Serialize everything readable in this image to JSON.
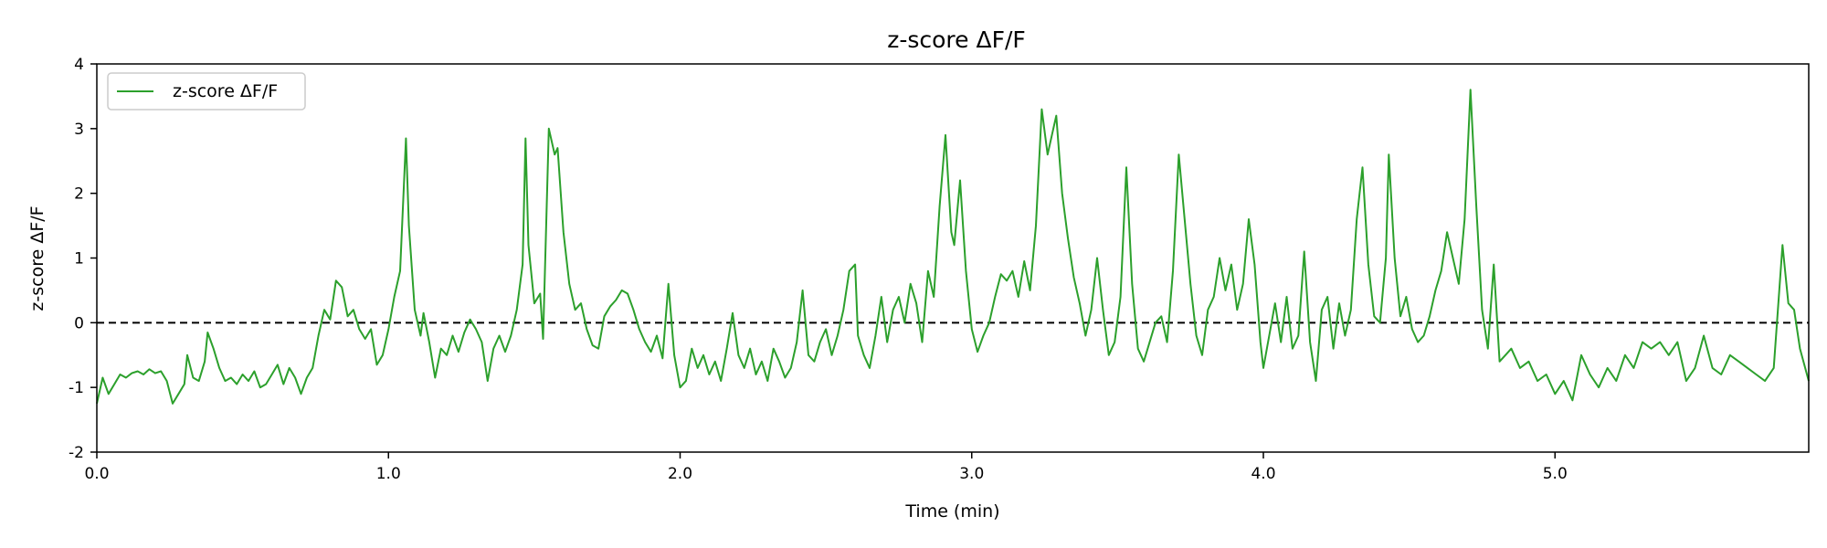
{
  "chart_data": {
    "type": "line",
    "title": "z-score ΔF/F",
    "xlabel": "Time (min)",
    "ylabel": "z-score ΔF/F",
    "xlim": [
      0,
      5.87
    ],
    "ylim": [
      -2,
      4
    ],
    "xticks": [
      0,
      1,
      2,
      3,
      4,
      5
    ],
    "xtick_labels": [
      "0.0",
      "1.0",
      "2.0",
      "3.0",
      "4.0",
      "5.0"
    ],
    "yticks": [
      -2,
      -1,
      0,
      1,
      2,
      3,
      4
    ],
    "ytick_labels": [
      "-2",
      "-1",
      "0",
      "1",
      "2",
      "3",
      "4"
    ],
    "grid": false,
    "legend": {
      "position": "top-left",
      "entries": [
        "z-score ΔF/F"
      ]
    },
    "reference_line": {
      "y": 0,
      "style": "dashed",
      "color": "#000000"
    },
    "series": [
      {
        "name": "z-score ΔF/F",
        "color": "#2ca02c",
        "points": [
          [
            0.0,
            -1.25
          ],
          [
            0.02,
            -0.85
          ],
          [
            0.04,
            -1.1
          ],
          [
            0.06,
            -0.95
          ],
          [
            0.08,
            -0.8
          ],
          [
            0.1,
            -0.85
          ],
          [
            0.12,
            -0.78
          ],
          [
            0.14,
            -0.75
          ],
          [
            0.16,
            -0.8
          ],
          [
            0.18,
            -0.72
          ],
          [
            0.2,
            -0.78
          ],
          [
            0.22,
            -0.75
          ],
          [
            0.24,
            -0.9
          ],
          [
            0.26,
            -1.25
          ],
          [
            0.28,
            -1.1
          ],
          [
            0.3,
            -0.95
          ],
          [
            0.31,
            -0.5
          ],
          [
            0.33,
            -0.85
          ],
          [
            0.35,
            -0.9
          ],
          [
            0.37,
            -0.6
          ],
          [
            0.38,
            -0.15
          ],
          [
            0.4,
            -0.4
          ],
          [
            0.42,
            -0.7
          ],
          [
            0.44,
            -0.9
          ],
          [
            0.46,
            -0.85
          ],
          [
            0.48,
            -0.95
          ],
          [
            0.5,
            -0.8
          ],
          [
            0.52,
            -0.9
          ],
          [
            0.54,
            -0.75
          ],
          [
            0.56,
            -1.0
          ],
          [
            0.58,
            -0.95
          ],
          [
            0.6,
            -0.8
          ],
          [
            0.62,
            -0.65
          ],
          [
            0.64,
            -0.95
          ],
          [
            0.66,
            -0.7
          ],
          [
            0.68,
            -0.85
          ],
          [
            0.7,
            -1.1
          ],
          [
            0.72,
            -0.85
          ],
          [
            0.74,
            -0.7
          ],
          [
            0.76,
            -0.2
          ],
          [
            0.78,
            0.2
          ],
          [
            0.8,
            0.05
          ],
          [
            0.82,
            0.65
          ],
          [
            0.84,
            0.55
          ],
          [
            0.86,
            0.1
          ],
          [
            0.88,
            0.2
          ],
          [
            0.9,
            -0.1
          ],
          [
            0.92,
            -0.25
          ],
          [
            0.94,
            -0.1
          ],
          [
            0.96,
            -0.65
          ],
          [
            0.98,
            -0.5
          ],
          [
            1.0,
            -0.1
          ],
          [
            1.02,
            0.4
          ],
          [
            1.04,
            0.8
          ],
          [
            1.06,
            2.85
          ],
          [
            1.07,
            1.5
          ],
          [
            1.09,
            0.2
          ],
          [
            1.11,
            -0.2
          ],
          [
            1.12,
            0.15
          ],
          [
            1.14,
            -0.3
          ],
          [
            1.16,
            -0.85
          ],
          [
            1.18,
            -0.4
          ],
          [
            1.2,
            -0.5
          ],
          [
            1.22,
            -0.2
          ],
          [
            1.24,
            -0.45
          ],
          [
            1.26,
            -0.15
          ],
          [
            1.28,
            0.05
          ],
          [
            1.3,
            -0.1
          ],
          [
            1.32,
            -0.3
          ],
          [
            1.34,
            -0.9
          ],
          [
            1.36,
            -0.4
          ],
          [
            1.38,
            -0.2
          ],
          [
            1.4,
            -0.45
          ],
          [
            1.42,
            -0.2
          ],
          [
            1.44,
            0.2
          ],
          [
            1.46,
            0.9
          ],
          [
            1.47,
            2.85
          ],
          [
            1.48,
            1.2
          ],
          [
            1.5,
            0.3
          ],
          [
            1.52,
            0.45
          ],
          [
            1.53,
            -0.25
          ],
          [
            1.55,
            3.0
          ],
          [
            1.57,
            2.6
          ],
          [
            1.58,
            2.7
          ],
          [
            1.6,
            1.4
          ],
          [
            1.62,
            0.6
          ],
          [
            1.64,
            0.2
          ],
          [
            1.66,
            0.3
          ],
          [
            1.68,
            -0.1
          ],
          [
            1.7,
            -0.35
          ],
          [
            1.72,
            -0.4
          ],
          [
            1.74,
            0.1
          ],
          [
            1.76,
            0.25
          ],
          [
            1.78,
            0.35
          ],
          [
            1.8,
            0.5
          ],
          [
            1.82,
            0.45
          ],
          [
            1.84,
            0.2
          ],
          [
            1.86,
            -0.1
          ],
          [
            1.88,
            -0.3
          ],
          [
            1.9,
            -0.45
          ],
          [
            1.92,
            -0.2
          ],
          [
            1.94,
            -0.55
          ],
          [
            1.96,
            0.6
          ],
          [
            1.98,
            -0.5
          ],
          [
            2.0,
            -1.0
          ],
          [
            2.02,
            -0.9
          ],
          [
            2.04,
            -0.4
          ],
          [
            2.06,
            -0.7
          ],
          [
            2.08,
            -0.5
          ],
          [
            2.1,
            -0.8
          ],
          [
            2.12,
            -0.6
          ],
          [
            2.14,
            -0.9
          ],
          [
            2.16,
            -0.4
          ],
          [
            2.18,
            0.15
          ],
          [
            2.2,
            -0.5
          ],
          [
            2.22,
            -0.7
          ],
          [
            2.24,
            -0.4
          ],
          [
            2.26,
            -0.8
          ],
          [
            2.28,
            -0.6
          ],
          [
            2.3,
            -0.9
          ],
          [
            2.32,
            -0.4
          ],
          [
            2.34,
            -0.6
          ],
          [
            2.36,
            -0.85
          ],
          [
            2.38,
            -0.7
          ],
          [
            2.4,
            -0.3
          ],
          [
            2.42,
            0.5
          ],
          [
            2.44,
            -0.5
          ],
          [
            2.46,
            -0.6
          ],
          [
            2.48,
            -0.3
          ],
          [
            2.5,
            -0.1
          ],
          [
            2.52,
            -0.5
          ],
          [
            2.54,
            -0.2
          ],
          [
            2.56,
            0.2
          ],
          [
            2.58,
            0.8
          ],
          [
            2.6,
            0.9
          ],
          [
            2.61,
            -0.2
          ],
          [
            2.63,
            -0.5
          ],
          [
            2.65,
            -0.7
          ],
          [
            2.67,
            -0.2
          ],
          [
            2.69,
            0.4
          ],
          [
            2.71,
            -0.3
          ],
          [
            2.73,
            0.2
          ],
          [
            2.75,
            0.4
          ],
          [
            2.77,
            0.0
          ],
          [
            2.79,
            0.6
          ],
          [
            2.81,
            0.3
          ],
          [
            2.83,
            -0.3
          ],
          [
            2.85,
            0.8
          ],
          [
            2.87,
            0.4
          ],
          [
            2.89,
            1.8
          ],
          [
            2.91,
            2.9
          ],
          [
            2.93,
            1.4
          ],
          [
            2.94,
            1.2
          ],
          [
            2.96,
            2.2
          ],
          [
            2.98,
            0.8
          ],
          [
            3.0,
            -0.1
          ],
          [
            3.02,
            -0.45
          ],
          [
            3.04,
            -0.2
          ],
          [
            3.06,
            0.0
          ],
          [
            3.08,
            0.4
          ],
          [
            3.1,
            0.75
          ],
          [
            3.12,
            0.65
          ],
          [
            3.14,
            0.8
          ],
          [
            3.16,
            0.4
          ],
          [
            3.18,
            0.95
          ],
          [
            3.2,
            0.5
          ],
          [
            3.22,
            1.5
          ],
          [
            3.24,
            3.3
          ],
          [
            3.26,
            2.6
          ],
          [
            3.28,
            3.0
          ],
          [
            3.29,
            3.2
          ],
          [
            3.31,
            2.0
          ],
          [
            3.33,
            1.3
          ],
          [
            3.35,
            0.7
          ],
          [
            3.37,
            0.3
          ],
          [
            3.39,
            -0.2
          ],
          [
            3.41,
            0.2
          ],
          [
            3.43,
            1.0
          ],
          [
            3.45,
            0.2
          ],
          [
            3.47,
            -0.5
          ],
          [
            3.49,
            -0.3
          ],
          [
            3.51,
            0.4
          ],
          [
            3.53,
            2.4
          ],
          [
            3.55,
            0.6
          ],
          [
            3.57,
            -0.4
          ],
          [
            3.59,
            -0.6
          ],
          [
            3.61,
            -0.3
          ],
          [
            3.63,
            0.0
          ],
          [
            3.65,
            0.1
          ],
          [
            3.67,
            -0.3
          ],
          [
            3.69,
            0.8
          ],
          [
            3.71,
            2.6
          ],
          [
            3.73,
            1.6
          ],
          [
            3.75,
            0.6
          ],
          [
            3.77,
            -0.2
          ],
          [
            3.79,
            -0.5
          ],
          [
            3.81,
            0.2
          ],
          [
            3.83,
            0.4
          ],
          [
            3.85,
            1.0
          ],
          [
            3.87,
            0.5
          ],
          [
            3.89,
            0.9
          ],
          [
            3.91,
            0.2
          ],
          [
            3.93,
            0.6
          ],
          [
            3.95,
            1.6
          ],
          [
            3.97,
            0.9
          ],
          [
            3.99,
            -0.3
          ],
          [
            4.0,
            -0.7
          ],
          [
            4.02,
            -0.2
          ],
          [
            4.04,
            0.3
          ],
          [
            4.06,
            -0.3
          ],
          [
            4.08,
            0.4
          ],
          [
            4.1,
            -0.4
          ],
          [
            4.12,
            -0.2
          ],
          [
            4.14,
            1.1
          ],
          [
            4.16,
            -0.3
          ],
          [
            4.18,
            -0.9
          ],
          [
            4.2,
            0.2
          ],
          [
            4.22,
            0.4
          ],
          [
            4.24,
            -0.4
          ],
          [
            4.26,
            0.3
          ],
          [
            4.28,
            -0.2
          ],
          [
            4.3,
            0.2
          ],
          [
            4.32,
            1.6
          ],
          [
            4.34,
            2.4
          ],
          [
            4.36,
            0.9
          ],
          [
            4.38,
            0.1
          ],
          [
            4.4,
            0.0
          ],
          [
            4.42,
            1.0
          ],
          [
            4.43,
            2.6
          ],
          [
            4.45,
            1.0
          ],
          [
            4.47,
            0.1
          ],
          [
            4.49,
            0.4
          ],
          [
            4.51,
            -0.1
          ],
          [
            4.53,
            -0.3
          ],
          [
            4.55,
            -0.2
          ],
          [
            4.57,
            0.1
          ],
          [
            4.59,
            0.5
          ],
          [
            4.61,
            0.8
          ],
          [
            4.63,
            1.4
          ],
          [
            4.65,
            1.0
          ],
          [
            4.67,
            0.6
          ],
          [
            4.69,
            1.6
          ],
          [
            4.71,
            3.6
          ],
          [
            4.73,
            1.8
          ],
          [
            4.75,
            0.2
          ],
          [
            4.77,
            -0.4
          ],
          [
            4.79,
            0.9
          ],
          [
            4.81,
            -0.6
          ],
          [
            4.83,
            -0.5
          ],
          [
            4.85,
            -0.4
          ],
          [
            4.88,
            -0.7
          ],
          [
            4.91,
            -0.6
          ],
          [
            4.94,
            -0.9
          ],
          [
            4.97,
            -0.8
          ],
          [
            5.0,
            -1.1
          ],
          [
            5.03,
            -0.9
          ],
          [
            5.06,
            -1.2
          ],
          [
            5.09,
            -0.5
          ],
          [
            5.12,
            -0.8
          ],
          [
            5.15,
            -1.0
          ],
          [
            5.18,
            -0.7
          ],
          [
            5.21,
            -0.9
          ],
          [
            5.24,
            -0.5
          ],
          [
            5.27,
            -0.7
          ],
          [
            5.3,
            -0.3
          ],
          [
            5.33,
            -0.4
          ],
          [
            5.36,
            -0.3
          ],
          [
            5.39,
            -0.5
          ],
          [
            5.42,
            -0.3
          ],
          [
            5.45,
            -0.9
          ],
          [
            5.48,
            -0.7
          ],
          [
            5.51,
            -0.2
          ],
          [
            5.54,
            -0.7
          ],
          [
            5.57,
            -0.8
          ],
          [
            5.6,
            -0.5
          ],
          [
            5.63,
            -0.6
          ],
          [
            5.66,
            -0.7
          ],
          [
            5.69,
            -0.8
          ],
          [
            5.72,
            -0.9
          ],
          [
            5.75,
            -0.7
          ],
          [
            5.78,
            1.2
          ],
          [
            5.8,
            0.3
          ],
          [
            5.82,
            0.2
          ],
          [
            5.84,
            -0.4
          ],
          [
            5.87,
            -0.9
          ]
        ]
      }
    ]
  }
}
